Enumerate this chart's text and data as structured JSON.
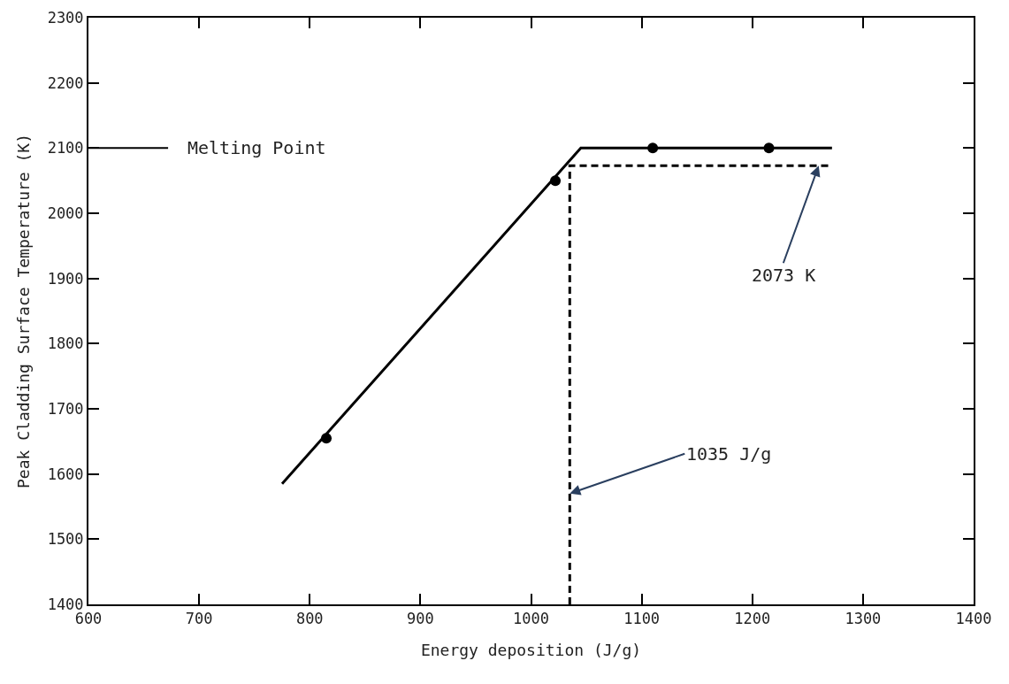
{
  "chart_data": {
    "type": "scatter",
    "xlabel": "Energy deposition (J/g)",
    "ylabel": "Peak Cladding Surface Temperature (K)",
    "xlim": [
      600,
      1400
    ],
    "xticks": [
      600,
      700,
      800,
      900,
      1000,
      1100,
      1200,
      1300,
      1400
    ],
    "ylim": [
      1400,
      2300
    ],
    "yticks": [
      1400,
      1500,
      1600,
      1700,
      1800,
      1900,
      2000,
      2100,
      2200,
      2300
    ],
    "ref_lines": [
      {
        "axis": "y",
        "value": 2100,
        "label": "Melting Point",
        "color": "#000000",
        "line_style": "solid"
      }
    ],
    "series": [
      {
        "color": "#000000",
        "marker": "circle",
        "x": [
          815,
          1022,
          1110,
          1215
        ],
        "values": [
          1655,
          2050,
          2100,
          2100
        ]
      },
      {
        "type": "line",
        "color": "#000000",
        "line_style": "solid",
        "x": [
          775,
          1045,
          1272
        ],
        "values": [
          1585,
          2100,
          2100
        ]
      },
      {
        "type": "line",
        "color": "#000000",
        "line_style": "dashed",
        "x": [
          1035,
          1035,
          1272
        ],
        "values": [
          1400,
          2073,
          2073
        ]
      }
    ],
    "annotations": [
      {
        "text": "2073 K",
        "x": 1260,
        "y": 2073
      },
      {
        "text": "1035 J/g",
        "x": 1035,
        "y": 1570
      }
    ]
  }
}
